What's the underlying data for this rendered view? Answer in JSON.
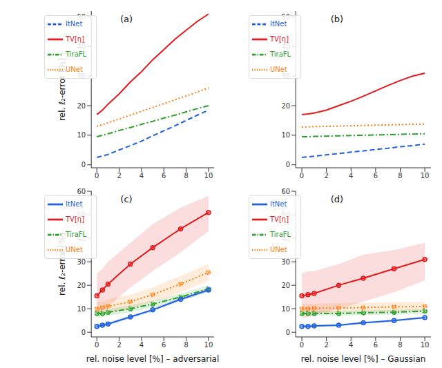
{
  "chart_data": [
    {
      "type": "line",
      "title": "(a)",
      "y_label": "rel. ℓ₂-error [%]",
      "xlim": [
        -0.5,
        10.5
      ],
      "xticks": [
        0,
        2,
        4,
        6,
        8,
        10
      ],
      "ylim": [
        -1,
        52
      ],
      "yticks": [
        0,
        10,
        20,
        30,
        40,
        50
      ],
      "legend": "upper left",
      "x": [
        0,
        0.5,
        1,
        2,
        3,
        4,
        5,
        6,
        7,
        8,
        9,
        10
      ],
      "series": [
        {
          "name": "TV[η]",
          "color": "#e31a1c",
          "line_style": "solid",
          "values": [
            17,
            18.5,
            20.5,
            24,
            28,
            31.5,
            35.5,
            39,
            42.5,
            45.5,
            48.5,
            51
          ]
        },
        {
          "name": "UNet",
          "color": "#ff7f0e",
          "line_style": "dotted",
          "values": [
            13,
            13.6,
            14.2,
            15.5,
            16.8,
            18.1,
            19.4,
            20.7,
            22,
            23.3,
            24.6,
            26
          ]
        },
        {
          "name": "TiraFL",
          "color": "#2ca02c",
          "line_style": "dashdot",
          "values": [
            9.5,
            10,
            10.5,
            11.6,
            12.6,
            13.7,
            14.7,
            15.8,
            16.8,
            17.9,
            19,
            20
          ]
        },
        {
          "name": "ItNet",
          "color": "#1f5fe0",
          "line_style": "dashed",
          "values": [
            2.5,
            3,
            3.5,
            5,
            6.5,
            8,
            9.8,
            11.5,
            13.2,
            15,
            16.8,
            18.5
          ]
        }
      ]
    },
    {
      "type": "line",
      "title": "(b)",
      "xlim": [
        -0.5,
        10.5
      ],
      "xticks": [
        0,
        2,
        4,
        6,
        8,
        10
      ],
      "ylim": [
        -1,
        52
      ],
      "yticks": [
        0,
        10,
        20,
        30,
        40,
        50
      ],
      "legend": "upper left",
      "x": [
        0,
        0.5,
        1,
        2,
        3,
        4,
        5,
        6,
        7,
        8,
        9,
        10
      ],
      "series": [
        {
          "name": "TV[η]",
          "color": "#e31a1c",
          "line_style": "solid",
          "values": [
            17,
            17.2,
            17.5,
            18.5,
            20,
            21.5,
            23.2,
            25,
            26.8,
            28.5,
            30,
            31
          ]
        },
        {
          "name": "UNet",
          "color": "#ff7f0e",
          "line_style": "dotted",
          "values": [
            12.8,
            12.8,
            12.9,
            13,
            13.1,
            13.2,
            13.3,
            13.4,
            13.5,
            13.6,
            13.7,
            13.8
          ]
        },
        {
          "name": "TiraFL",
          "color": "#2ca02c",
          "line_style": "dashdot",
          "values": [
            9.5,
            9.5,
            9.6,
            9.7,
            9.8,
            9.9,
            10,
            10.1,
            10.2,
            10.3,
            10.4,
            10.5
          ]
        },
        {
          "name": "ItNet",
          "color": "#1f5fe0",
          "line_style": "dashed",
          "values": [
            2.5,
            2.7,
            2.9,
            3.4,
            3.8,
            4.3,
            4.7,
            5.2,
            5.6,
            6.1,
            6.5,
            7
          ]
        }
      ]
    },
    {
      "type": "line",
      "title": "(c)",
      "x_label": "rel. noise level [%] – adversarial",
      "y_label": "rel. ℓ₂-error [%]",
      "xlim": [
        -0.5,
        10.5
      ],
      "xticks": [
        0,
        2,
        4,
        6,
        8,
        10
      ],
      "ylim": [
        -2,
        60
      ],
      "yticks": [
        0,
        10,
        20,
        30,
        40,
        50,
        60
      ],
      "legend": "upper left",
      "x": [
        0,
        0.5,
        1,
        3,
        5,
        7.5,
        10
      ],
      "series": [
        {
          "name": "TV[η]",
          "color": "#e31a1c",
          "line_style": "solid",
          "marker": "o",
          "values": [
            15.5,
            18,
            20.5,
            29,
            36,
            44,
            51
          ],
          "lower": [
            7,
            9,
            11,
            19,
            26,
            34,
            43
          ],
          "upper": [
            25,
            27,
            30,
            38,
            46,
            53,
            58
          ]
        },
        {
          "name": "UNet",
          "color": "#ff7f0e",
          "line_style": "dotted",
          "marker": "o",
          "values": [
            10,
            10.5,
            11,
            13,
            16,
            20.5,
            25.5
          ],
          "lower": [
            7,
            8,
            8,
            10,
            13,
            17,
            22
          ],
          "upper": [
            13,
            13,
            14,
            16,
            19,
            24,
            29
          ]
        },
        {
          "name": "TiraFL",
          "color": "#2ca02c",
          "line_style": "dashdot",
          "marker": "o",
          "values": [
            8,
            8,
            8.5,
            10,
            12,
            15,
            18.5
          ],
          "lower": [
            6.5,
            6.5,
            7,
            8.5,
            10.5,
            13.5,
            17
          ],
          "upper": [
            9.5,
            9.5,
            10,
            11.5,
            13.5,
            16.5,
            20
          ]
        },
        {
          "name": "ItNet",
          "color": "#1f5fe0",
          "line_style": "solid",
          "marker": "o",
          "values": [
            2.5,
            3,
            3.5,
            6.5,
            9.5,
            14,
            18
          ],
          "lower": [
            1.8,
            2.3,
            2.8,
            5.8,
            8.8,
            13.3,
            17.3
          ],
          "upper": [
            3.2,
            3.7,
            4.2,
            7.2,
            10.2,
            14.7,
            18.7
          ]
        }
      ]
    },
    {
      "type": "line",
      "title": "(d)",
      "x_label": "rel. noise level [%] – Gaussian",
      "xlim": [
        -0.5,
        10.5
      ],
      "xticks": [
        0,
        2,
        4,
        6,
        8,
        10
      ],
      "ylim": [
        -2,
        60
      ],
      "yticks": [
        0,
        10,
        20,
        30,
        40,
        50,
        60
      ],
      "legend": "upper left",
      "x": [
        0,
        0.5,
        1,
        3,
        5,
        7.5,
        10
      ],
      "series": [
        {
          "name": "TV[η]",
          "color": "#e31a1c",
          "line_style": "solid",
          "marker": "o",
          "values": [
            15.5,
            16,
            16.5,
            20,
            23,
            27,
            31
          ],
          "lower": [
            6,
            6.5,
            7,
            10,
            13,
            17,
            22
          ],
          "upper": [
            25,
            26,
            26,
            29,
            33,
            35,
            38
          ]
        },
        {
          "name": "UNet",
          "color": "#ff7f0e",
          "line_style": "dotted",
          "marker": "o",
          "values": [
            10,
            10,
            10.2,
            10.3,
            10.5,
            10.8,
            11
          ],
          "lower": [
            8,
            8,
            8.2,
            8.3,
            8.5,
            8.8,
            9
          ],
          "upper": [
            12,
            12,
            12.2,
            12.3,
            12.5,
            12.8,
            13
          ]
        },
        {
          "name": "TiraFL",
          "color": "#2ca02c",
          "line_style": "dashdot",
          "marker": "o",
          "values": [
            8,
            8,
            8,
            8,
            8.3,
            8.5,
            9
          ],
          "lower": [
            7,
            7,
            7,
            7,
            7.3,
            7.5,
            8
          ],
          "upper": [
            9,
            9,
            9,
            9,
            9.3,
            9.5,
            10
          ]
        },
        {
          "name": "ItNet",
          "color": "#1f5fe0",
          "line_style": "solid",
          "marker": "o",
          "values": [
            2.5,
            2.5,
            2.7,
            3,
            4,
            5,
            6.2
          ],
          "lower": [
            2,
            2,
            2.2,
            2.5,
            3.5,
            4.5,
            5.7
          ],
          "upper": [
            3,
            3,
            3.2,
            3.5,
            4.5,
            5.5,
            6.7
          ]
        }
      ]
    }
  ]
}
